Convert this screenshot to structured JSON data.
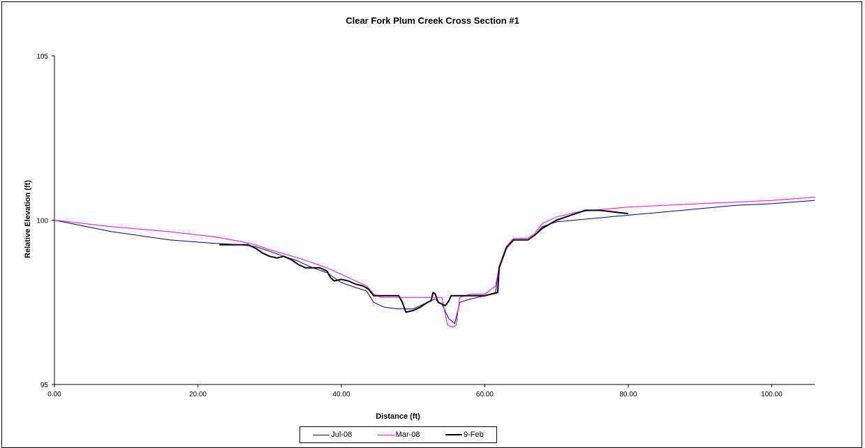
{
  "chart_data": {
    "type": "line",
    "title": "Clear Fork Plum Creek Cross Section #1",
    "xlabel": "Distance (ft)",
    "ylabel": "Relative Elevation (ft)",
    "xlim": [
      0,
      106
    ],
    "ylim": [
      95,
      105
    ],
    "x_ticks": [
      "0.00",
      "20.00",
      "40.00",
      "60.00",
      "80.00",
      "100.00"
    ],
    "y_ticks": [
      "95",
      "100",
      "105"
    ],
    "grid": false,
    "legend_position": "bottom",
    "series": [
      {
        "name": "Jul-08",
        "color": "#000080",
        "width": 1,
        "points": [
          [
            0,
            100.0
          ],
          [
            8,
            99.65
          ],
          [
            16,
            99.4
          ],
          [
            22,
            99.3
          ],
          [
            26,
            99.25
          ],
          [
            28,
            99.2
          ],
          [
            30,
            99.05
          ],
          [
            32,
            98.9
          ],
          [
            34,
            98.75
          ],
          [
            36,
            98.55
          ],
          [
            38,
            98.4
          ],
          [
            40,
            98.1
          ],
          [
            42,
            97.95
          ],
          [
            43.5,
            97.85
          ],
          [
            44.5,
            97.5
          ],
          [
            46,
            97.35
          ],
          [
            48,
            97.3
          ],
          [
            50,
            97.3
          ],
          [
            52,
            97.5
          ],
          [
            53,
            97.6
          ],
          [
            54,
            97.45
          ],
          [
            55,
            97.0
          ],
          [
            55.8,
            96.85
          ],
          [
            56.5,
            97.5
          ],
          [
            58,
            97.6
          ],
          [
            60,
            97.7
          ],
          [
            61.5,
            97.8
          ],
          [
            62,
            98.6
          ],
          [
            63,
            99.15
          ],
          [
            64,
            99.4
          ],
          [
            65,
            99.4
          ],
          [
            66,
            99.4
          ],
          [
            67,
            99.55
          ],
          [
            68,
            99.8
          ],
          [
            70,
            99.95
          ],
          [
            75,
            100.05
          ],
          [
            80,
            100.15
          ],
          [
            85,
            100.25
          ],
          [
            90,
            100.35
          ],
          [
            95,
            100.45
          ],
          [
            100,
            100.5
          ],
          [
            106,
            100.6
          ]
        ]
      },
      {
        "name": "Mar-08",
        "color": "#ff00ff",
        "width": 1,
        "points": [
          [
            0,
            100.0
          ],
          [
            8,
            99.8
          ],
          [
            16,
            99.65
          ],
          [
            22,
            99.5
          ],
          [
            26,
            99.35
          ],
          [
            28,
            99.25
          ],
          [
            30,
            99.1
          ],
          [
            34,
            98.85
          ],
          [
            38,
            98.55
          ],
          [
            40,
            98.35
          ],
          [
            42,
            98.15
          ],
          [
            43.5,
            98.0
          ],
          [
            44.5,
            97.75
          ],
          [
            45.5,
            97.65
          ],
          [
            48,
            97.65
          ],
          [
            50,
            97.65
          ],
          [
            52,
            97.65
          ],
          [
            54,
            97.65
          ],
          [
            54.8,
            96.8
          ],
          [
            55.5,
            96.75
          ],
          [
            56,
            96.8
          ],
          [
            56.5,
            97.65
          ],
          [
            58,
            97.75
          ],
          [
            60,
            97.75
          ],
          [
            61.5,
            98.0
          ],
          [
            62,
            98.6
          ],
          [
            63,
            99.2
          ],
          [
            64,
            99.45
          ],
          [
            66,
            99.45
          ],
          [
            67,
            99.6
          ],
          [
            68,
            99.9
          ],
          [
            70,
            100.1
          ],
          [
            73,
            100.25
          ],
          [
            75,
            100.3
          ],
          [
            80,
            100.4
          ],
          [
            85,
            100.45
          ],
          [
            90,
            100.5
          ],
          [
            95,
            100.55
          ],
          [
            100,
            100.6
          ],
          [
            106,
            100.7
          ]
        ]
      },
      {
        "name": "9-Feb",
        "color": "#000000",
        "width": 2,
        "points": [
          [
            23,
            99.25
          ],
          [
            25,
            99.25
          ],
          [
            27,
            99.25
          ],
          [
            28,
            99.15
          ],
          [
            29,
            99.0
          ],
          [
            30,
            98.9
          ],
          [
            31,
            98.85
          ],
          [
            32,
            98.9
          ],
          [
            33,
            98.8
          ],
          [
            34,
            98.65
          ],
          [
            35,
            98.55
          ],
          [
            37,
            98.55
          ],
          [
            38,
            98.45
          ],
          [
            38.5,
            98.25
          ],
          [
            39,
            98.15
          ],
          [
            40,
            98.2
          ],
          [
            41,
            98.15
          ],
          [
            42,
            98.05
          ],
          [
            43,
            98.0
          ],
          [
            43.8,
            97.9
          ],
          [
            44.5,
            97.7
          ],
          [
            46,
            97.7
          ],
          [
            48,
            97.7
          ],
          [
            48.5,
            97.5
          ],
          [
            49,
            97.2
          ],
          [
            50,
            97.25
          ],
          [
            51,
            97.35
          ],
          [
            52,
            97.5
          ],
          [
            52.5,
            97.55
          ],
          [
            52.8,
            97.8
          ],
          [
            53.1,
            97.75
          ],
          [
            53.5,
            97.5
          ],
          [
            54,
            97.45
          ],
          [
            54.5,
            97.4
          ],
          [
            55,
            97.55
          ],
          [
            55.3,
            97.7
          ],
          [
            56,
            97.7
          ],
          [
            58,
            97.7
          ],
          [
            60,
            97.7
          ],
          [
            61.8,
            97.8
          ],
          [
            62,
            98.55
          ],
          [
            63,
            99.15
          ],
          [
            64,
            99.4
          ],
          [
            66,
            99.4
          ],
          [
            67,
            99.55
          ],
          [
            68,
            99.75
          ],
          [
            70,
            100.0
          ],
          [
            72,
            100.15
          ],
          [
            74,
            100.3
          ],
          [
            76,
            100.3
          ],
          [
            78,
            100.25
          ],
          [
            80,
            100.2
          ]
        ]
      }
    ]
  }
}
